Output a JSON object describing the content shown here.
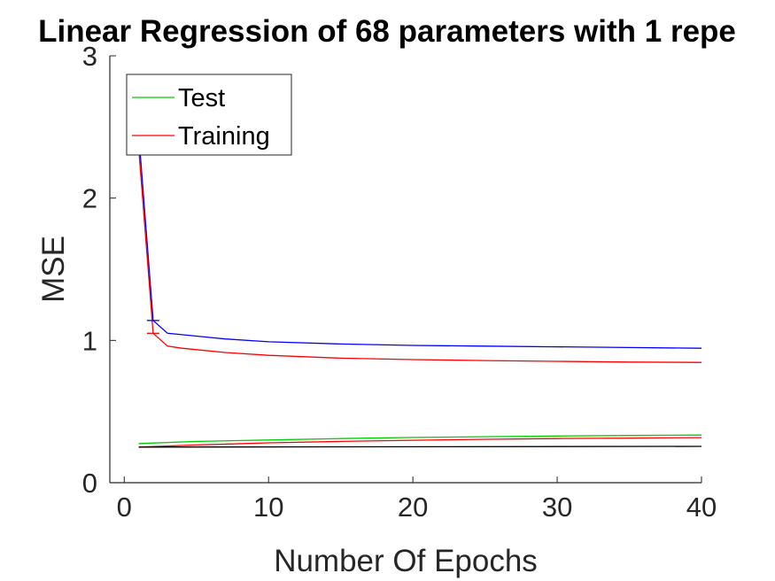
{
  "chart_data": {
    "type": "line",
    "title": "Linear Regression of  68 parameters with 1 repe",
    "xlabel": "Number Of Epochs",
    "ylabel": "MSE",
    "xlim": [
      -1,
      40
    ],
    "ylim": [
      0,
      3
    ],
    "xticks": [
      0,
      10,
      20,
      30,
      40
    ],
    "yticks": [
      0,
      1,
      2,
      3
    ],
    "grid": false,
    "legend": {
      "placement": "top-left",
      "entries": [
        {
          "label": "Test",
          "color": "#00cc00"
        },
        {
          "label": "Training",
          "color": "#ff0000"
        }
      ]
    },
    "series": [
      {
        "color": "#0000ff",
        "x": [
          1,
          2,
          3,
          4,
          5,
          7,
          10,
          15,
          20,
          25,
          30,
          35,
          40
        ],
        "y": [
          2.45,
          1.14,
          1.05,
          1.04,
          1.03,
          1.01,
          0.99,
          0.975,
          0.965,
          0.96,
          0.955,
          0.95,
          0.945
        ]
      },
      {
        "name": "Training",
        "color": "#ff0000",
        "x": [
          1,
          2,
          3,
          4,
          5,
          7,
          10,
          15,
          20,
          25,
          30,
          35,
          40
        ],
        "y": [
          2.35,
          1.05,
          0.96,
          0.945,
          0.935,
          0.915,
          0.895,
          0.875,
          0.865,
          0.858,
          0.853,
          0.848,
          0.845
        ]
      },
      {
        "name": "Test",
        "color": "#00cc00",
        "x": [
          1,
          5,
          10,
          15,
          20,
          25,
          30,
          35,
          40
        ],
        "y": [
          0.275,
          0.29,
          0.3,
          0.31,
          0.318,
          0.323,
          0.328,
          0.332,
          0.335
        ]
      },
      {
        "color": "#ff0000",
        "x": [
          1,
          5,
          10,
          15,
          20,
          25,
          30,
          35,
          40
        ],
        "y": [
          0.25,
          0.265,
          0.28,
          0.29,
          0.298,
          0.305,
          0.31,
          0.314,
          0.317
        ]
      },
      {
        "color": "#000000",
        "x": [
          1,
          40
        ],
        "y": [
          0.25,
          0.255
        ]
      }
    ],
    "error_bars": [
      {
        "color": "#0000ff",
        "x": 2,
        "y": 1.14
      },
      {
        "color": "#ff0000",
        "x": 2,
        "y": 1.05
      }
    ]
  }
}
